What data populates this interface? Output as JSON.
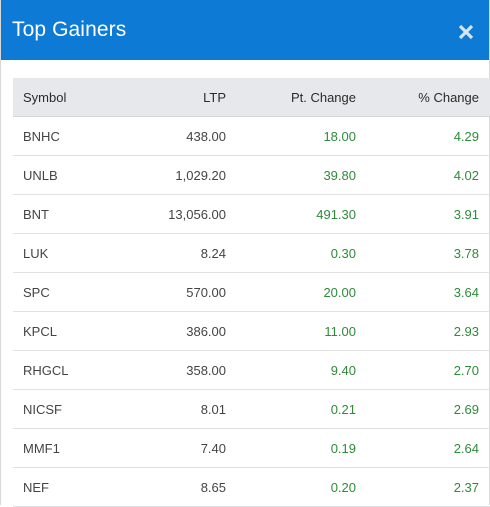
{
  "modal": {
    "title": "Top Gainers",
    "close_icon": "close-icon"
  },
  "colors": {
    "header_bg": "#0d7ad6",
    "gain_text": "#2e8b3a",
    "table_header_bg": "#e6e8eb"
  },
  "table": {
    "headers": {
      "symbol": "Symbol",
      "ltp": "LTP",
      "pt_change": "Pt. Change",
      "pct_change": "% Change"
    },
    "rows": [
      {
        "symbol": "BNHC",
        "ltp": "438.00",
        "pt_change": "18.00",
        "pct_change": "4.29"
      },
      {
        "symbol": "UNLB",
        "ltp": "1,029.20",
        "pt_change": "39.80",
        "pct_change": "4.02"
      },
      {
        "symbol": "BNT",
        "ltp": "13,056.00",
        "pt_change": "491.30",
        "pct_change": "3.91"
      },
      {
        "symbol": "LUK",
        "ltp": "8.24",
        "pt_change": "0.30",
        "pct_change": "3.78"
      },
      {
        "symbol": "SPC",
        "ltp": "570.00",
        "pt_change": "20.00",
        "pct_change": "3.64"
      },
      {
        "symbol": "KPCL",
        "ltp": "386.00",
        "pt_change": "11.00",
        "pct_change": "2.93"
      },
      {
        "symbol": "RHGCL",
        "ltp": "358.00",
        "pt_change": "9.40",
        "pct_change": "2.70"
      },
      {
        "symbol": "NICSF",
        "ltp": "8.01",
        "pt_change": "0.21",
        "pct_change": "2.69"
      },
      {
        "symbol": "MMF1",
        "ltp": "7.40",
        "pt_change": "0.19",
        "pct_change": "2.64"
      },
      {
        "symbol": "NEF",
        "ltp": "8.65",
        "pt_change": "0.20",
        "pct_change": "2.37"
      }
    ]
  }
}
